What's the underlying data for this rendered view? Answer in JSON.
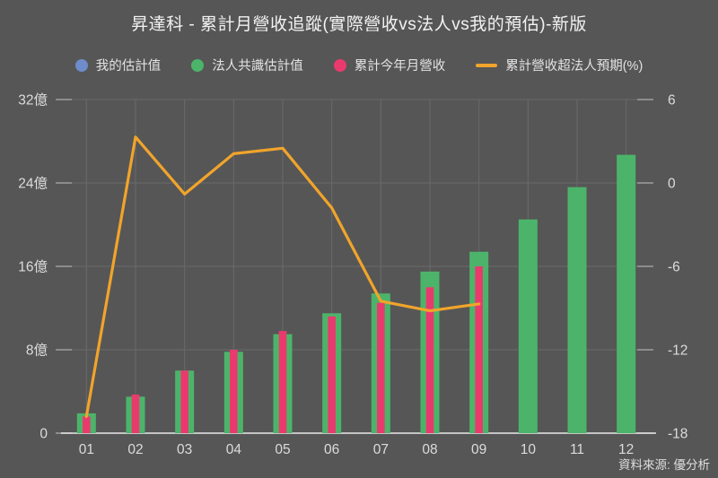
{
  "title": "昇達科 - 累計月營收追蹤(實際營收vs法人vs我的預估)-新版",
  "source_note": "資料來源: 優分析",
  "colors": {
    "background": "#565656",
    "grid": "#6a6a6a",
    "tick": "#9e9e9e",
    "axis_line": "#e8e8e8",
    "text": "#dcdcdc",
    "title_text": "#f2f2f2",
    "my_estimate": "#6e8cca",
    "consensus": "#4cb46a",
    "actual": "#e93a6e",
    "surprise_line": "#f1a42b"
  },
  "legend": [
    {
      "label": "我的估計值",
      "marker": "dot",
      "color_key": "my_estimate"
    },
    {
      "label": "法人共識估計值",
      "marker": "dot",
      "color_key": "consensus"
    },
    {
      "label": "累計今年月營收",
      "marker": "dot",
      "color_key": "actual"
    },
    {
      "label": "累計營收超法人預期(%)",
      "marker": "line",
      "color_key": "surprise_line"
    }
  ],
  "chart_data": {
    "type": "bar",
    "title": "昇達科 - 累計月營收追蹤(實際營收vs法人vs我的預估)-新版",
    "categories": [
      "01",
      "02",
      "03",
      "04",
      "05",
      "06",
      "07",
      "08",
      "09",
      "10",
      "11",
      "12"
    ],
    "series": [
      {
        "name": "我的估計值",
        "type": "bar",
        "axis": "left",
        "color_key": "my_estimate",
        "values": []
      },
      {
        "name": "法人共識估計值",
        "type": "bar",
        "axis": "left",
        "color_key": "consensus",
        "values": [
          1.9,
          3.5,
          6.0,
          7.8,
          9.5,
          11.5,
          13.4,
          15.5,
          17.4,
          20.5,
          23.6,
          26.7
        ]
      },
      {
        "name": "累計今年月營收",
        "type": "bar",
        "axis": "left",
        "color_key": "actual",
        "values": [
          1.6,
          3.7,
          6.0,
          8.0,
          9.8,
          11.2,
          12.5,
          14.0,
          16.0,
          null,
          null,
          null
        ]
      },
      {
        "name": "累計營收超法人預期(%)",
        "type": "line",
        "axis": "right",
        "color_key": "surprise_line",
        "values": [
          -16.8,
          3.3,
          -0.8,
          2.1,
          2.5,
          -1.8,
          -8.5,
          -9.2,
          -8.7,
          null,
          null,
          null
        ]
      }
    ],
    "left_axis": {
      "range": [
        0,
        32
      ],
      "ticks": [
        0,
        8,
        16,
        24,
        32
      ],
      "tick_labels": [
        "0",
        "8億",
        "16億",
        "24億",
        "32億"
      ]
    },
    "right_axis": {
      "range": [
        -18,
        6
      ],
      "ticks": [
        -18,
        -12,
        -6,
        0,
        6
      ],
      "tick_labels": [
        "-18",
        "-12",
        "-6",
        "0",
        "6"
      ]
    },
    "grid": true,
    "legend_position": "top"
  }
}
